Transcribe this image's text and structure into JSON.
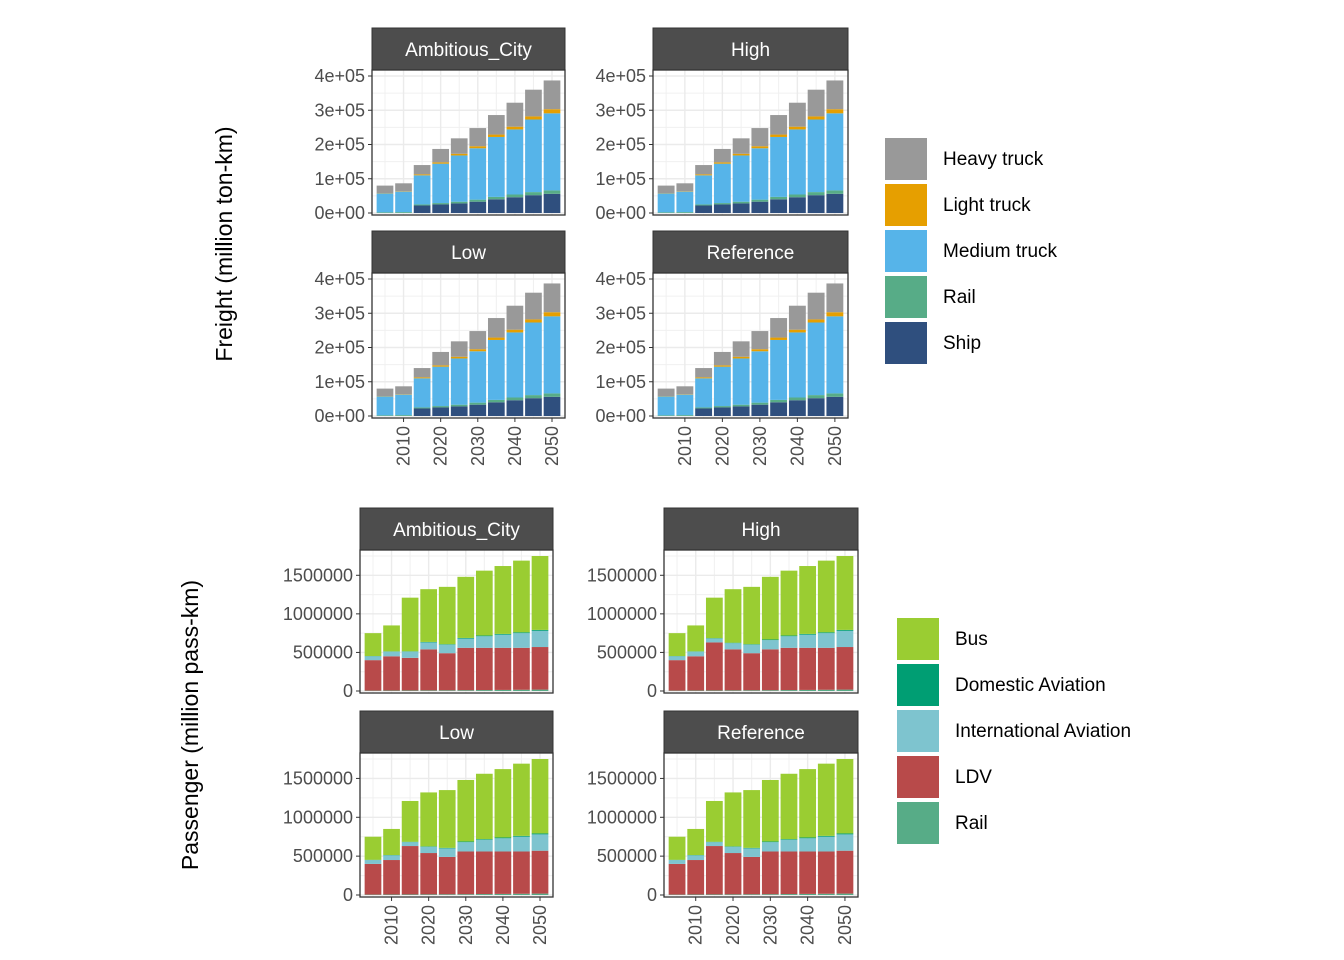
{
  "chart_data": [
    {
      "type": "bar",
      "stacked": true,
      "facet_var": "scenario",
      "ylabel": "Freight (million ton-km)",
      "x": [
        2005,
        2010,
        2015,
        2020,
        2025,
        2030,
        2035,
        2040,
        2045,
        2050
      ],
      "x_ticks": [
        "2010",
        "2020",
        "2030",
        "2040",
        "2050"
      ],
      "x_tick_values": [
        2010,
        2020,
        2030,
        2040,
        2050
      ],
      "ylim": [
        0,
        400000
      ],
      "y_ticks": [
        "0e+00",
        "1e+05",
        "2e+05",
        "3e+05",
        "4e+05"
      ],
      "y_tick_values": [
        0,
        100000,
        200000,
        300000,
        400000
      ],
      "grid": true,
      "legend_position": "right",
      "colors": {
        "Heavy truck": "#999999",
        "Light truck": "#E69F00",
        "Medium truck": "#56B4E9",
        "Rail": "#57AC87",
        "Ship": "#2F4F7E"
      },
      "legend": [
        "Heavy truck",
        "Light truck",
        "Medium truck",
        "Rail",
        "Ship"
      ],
      "stack_order": [
        "Ship",
        "Rail",
        "Medium truck",
        "Light truck",
        "Heavy truck"
      ],
      "facets": [
        {
          "label": "Ambitious_City",
          "series": [
            {
              "name": "Ship",
              "values": [
                0,
                0,
                22000,
                25000,
                28000,
                33000,
                40000,
                46000,
                52000,
                56000
              ]
            },
            {
              "name": "Rail",
              "values": [
                2000,
                2500,
                3000,
                4000,
                5000,
                6000,
                7000,
                8000,
                9000,
                10000
              ]
            },
            {
              "name": "Medium truck",
              "values": [
                55000,
                60000,
                85000,
                115000,
                135000,
                150000,
                175000,
                190000,
                212000,
                225000
              ]
            },
            {
              "name": "Light truck",
              "values": [
                1000,
                1200,
                3000,
                4000,
                5000,
                6000,
                7000,
                8000,
                9000,
                12000
              ]
            },
            {
              "name": "Heavy truck",
              "values": [
                22000,
                23000,
                27000,
                39000,
                45000,
                53000,
                57000,
                70000,
                78000,
                84000
              ]
            }
          ]
        },
        {
          "label": "High",
          "series": [
            {
              "name": "Ship",
              "values": [
                0,
                0,
                22000,
                25000,
                28000,
                33000,
                40000,
                46000,
                52000,
                56000
              ]
            },
            {
              "name": "Rail",
              "values": [
                2000,
                2500,
                3000,
                4000,
                5000,
                6000,
                7000,
                8000,
                9000,
                10000
              ]
            },
            {
              "name": "Medium truck",
              "values": [
                55000,
                60000,
                85000,
                115000,
                135000,
                150000,
                175000,
                190000,
                212000,
                225000
              ]
            },
            {
              "name": "Light truck",
              "values": [
                1000,
                1200,
                3000,
                4000,
                5000,
                6000,
                7000,
                8000,
                9000,
                12000
              ]
            },
            {
              "name": "Heavy truck",
              "values": [
                22000,
                23000,
                27000,
                39000,
                45000,
                53000,
                57000,
                70000,
                78000,
                84000
              ]
            }
          ]
        },
        {
          "label": "Low",
          "series": [
            {
              "name": "Ship",
              "values": [
                0,
                0,
                22000,
                25000,
                28000,
                33000,
                40000,
                46000,
                52000,
                56000
              ]
            },
            {
              "name": "Rail",
              "values": [
                2000,
                2500,
                3000,
                4000,
                5000,
                6000,
                7000,
                8000,
                9000,
                10000
              ]
            },
            {
              "name": "Medium truck",
              "values": [
                55000,
                60000,
                85000,
                115000,
                135000,
                150000,
                175000,
                190000,
                212000,
                225000
              ]
            },
            {
              "name": "Light truck",
              "values": [
                1000,
                1200,
                3000,
                4000,
                5000,
                6000,
                7000,
                8000,
                9000,
                12000
              ]
            },
            {
              "name": "Heavy truck",
              "values": [
                22000,
                23000,
                27000,
                39000,
                45000,
                53000,
                57000,
                70000,
                78000,
                84000
              ]
            }
          ]
        },
        {
          "label": "Reference",
          "series": [
            {
              "name": "Ship",
              "values": [
                0,
                0,
                22000,
                25000,
                28000,
                33000,
                40000,
                46000,
                52000,
                56000
              ]
            },
            {
              "name": "Rail",
              "values": [
                2000,
                2500,
                3000,
                4000,
                5000,
                6000,
                7000,
                8000,
                9000,
                10000
              ]
            },
            {
              "name": "Medium truck",
              "values": [
                55000,
                60000,
                85000,
                115000,
                135000,
                150000,
                175000,
                190000,
                212000,
                225000
              ]
            },
            {
              "name": "Light truck",
              "values": [
                1000,
                1200,
                3000,
                4000,
                5000,
                6000,
                7000,
                8000,
                9000,
                12000
              ]
            },
            {
              "name": "Heavy truck",
              "values": [
                22000,
                23000,
                27000,
                39000,
                45000,
                53000,
                57000,
                70000,
                78000,
                84000
              ]
            }
          ]
        }
      ]
    },
    {
      "type": "bar",
      "stacked": true,
      "facet_var": "scenario",
      "ylabel": "Passenger (million pass-km)",
      "x": [
        2005,
        2010,
        2015,
        2020,
        2025,
        2030,
        2035,
        2040,
        2045,
        2050
      ],
      "x_ticks": [
        "2010",
        "2020",
        "2030",
        "2040",
        "2050"
      ],
      "x_tick_values": [
        2010,
        2020,
        2030,
        2040,
        2050
      ],
      "ylim": [
        0,
        1750000
      ],
      "y_ticks": [
        "0",
        "500000",
        "1000000",
        "1500000"
      ],
      "y_tick_values": [
        0,
        500000,
        1000000,
        1500000
      ],
      "grid": true,
      "legend_position": "right",
      "colors": {
        "Bus": "#9ACD32",
        "Domestic Aviation": "#009E73",
        "International Aviation": "#7EC4CF",
        "LDV": "#B84A4A",
        "Rail": "#57AC87"
      },
      "legend": [
        "Bus",
        "Domestic Aviation",
        "International Aviation",
        "LDV",
        "Rail"
      ],
      "stack_order": [
        "Rail",
        "LDV",
        "International Aviation",
        "Domestic Aviation",
        "Bus"
      ],
      "facets": [
        {
          "label": "Ambitious_City",
          "series": [
            {
              "name": "Rail",
              "values": [
                5000,
                6000,
                7000,
                8000,
                9000,
                10000,
                12000,
                14000,
                16000,
                18000
              ]
            },
            {
              "name": "LDV",
              "values": [
                395000,
                444000,
                423000,
                532000,
                481000,
                550000,
                548000,
                546000,
                544000,
                552000
              ]
            },
            {
              "name": "International Aviation",
              "values": [
                50000,
                60000,
                80000,
                90000,
                110000,
                120000,
                150000,
                170000,
                190000,
                210000
              ]
            },
            {
              "name": "Domestic Aviation",
              "values": [
                3000,
                4000,
                5000,
                6000,
                7000,
                8000,
                9000,
                10000,
                11000,
                12000
              ]
            },
            {
              "name": "Bus",
              "values": [
                297000,
                336000,
                695000,
                684000,
                743000,
                792000,
                841000,
                880000,
                929000,
                958000
              ]
            }
          ]
        },
        {
          "label": "High",
          "series": [
            {
              "name": "Rail",
              "values": [
                5000,
                6000,
                7000,
                8000,
                9000,
                10000,
                12000,
                14000,
                16000,
                18000
              ]
            },
            {
              "name": "LDV",
              "values": [
                395000,
                444000,
                623000,
                532000,
                481000,
                530000,
                548000,
                546000,
                544000,
                552000
              ]
            },
            {
              "name": "International Aviation",
              "values": [
                50000,
                60000,
                50000,
                80000,
                110000,
                120000,
                150000,
                170000,
                190000,
                210000
              ]
            },
            {
              "name": "Domestic Aviation",
              "values": [
                3000,
                4000,
                5000,
                6000,
                7000,
                8000,
                9000,
                10000,
                11000,
                12000
              ]
            },
            {
              "name": "Bus",
              "values": [
                297000,
                336000,
                525000,
                694000,
                743000,
                812000,
                841000,
                880000,
                929000,
                958000
              ]
            }
          ]
        },
        {
          "label": "Low",
          "series": [
            {
              "name": "Rail",
              "values": [
                5000,
                6000,
                7000,
                8000,
                9000,
                10000,
                12000,
                14000,
                16000,
                18000
              ]
            },
            {
              "name": "LDV",
              "values": [
                395000,
                444000,
                623000,
                532000,
                481000,
                550000,
                548000,
                546000,
                544000,
                552000
              ]
            },
            {
              "name": "International Aviation",
              "values": [
                50000,
                60000,
                50000,
                80000,
                110000,
                120000,
                150000,
                170000,
                190000,
                210000
              ]
            },
            {
              "name": "Domestic Aviation",
              "values": [
                3000,
                4000,
                5000,
                6000,
                7000,
                8000,
                9000,
                10000,
                11000,
                12000
              ]
            },
            {
              "name": "Bus",
              "values": [
                297000,
                336000,
                525000,
                694000,
                743000,
                792000,
                841000,
                880000,
                929000,
                958000
              ]
            }
          ]
        },
        {
          "label": "Reference",
          "series": [
            {
              "name": "Rail",
              "values": [
                5000,
                6000,
                7000,
                8000,
                9000,
                10000,
                12000,
                14000,
                16000,
                18000
              ]
            },
            {
              "name": "LDV",
              "values": [
                395000,
                444000,
                623000,
                532000,
                481000,
                550000,
                548000,
                546000,
                544000,
                552000
              ]
            },
            {
              "name": "International Aviation",
              "values": [
                50000,
                60000,
                50000,
                80000,
                110000,
                120000,
                150000,
                170000,
                190000,
                210000
              ]
            },
            {
              "name": "Domestic Aviation",
              "values": [
                3000,
                4000,
                5000,
                6000,
                7000,
                8000,
                9000,
                10000,
                11000,
                12000
              ]
            },
            {
              "name": "Bus",
              "values": [
                297000,
                336000,
                525000,
                694000,
                743000,
                792000,
                841000,
                880000,
                929000,
                958000
              ]
            }
          ]
        }
      ]
    }
  ]
}
